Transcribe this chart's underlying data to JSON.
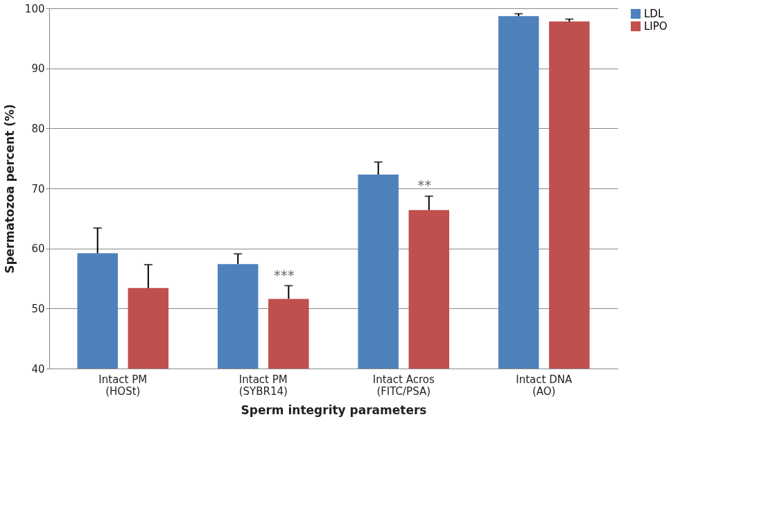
{
  "chart_data": {
    "type": "bar",
    "xlabel": "Sperm integrity parameters",
    "ylabel": "Spermatozoa percent (%)",
    "categories": [
      "Intact PM\n(HOSt)",
      "Intact PM\n(SYBR14)",
      "Intact Acros\n(FITC/PSA)",
      "Intact DNA\n(AO)"
    ],
    "series": [
      {
        "name": "LDL",
        "color": "#4f81bd",
        "values": [
          59.2,
          57.4,
          72.3,
          98.7
        ],
        "errors": [
          4.2,
          1.7,
          2.1,
          0.4
        ]
      },
      {
        "name": "LIPO",
        "color": "#c0504d",
        "values": [
          53.4,
          51.6,
          66.4,
          97.8
        ],
        "errors": [
          3.9,
          2.2,
          2.3,
          0.4
        ]
      }
    ],
    "ylim": [
      40,
      100
    ],
    "yticks": [
      40,
      50,
      60,
      70,
      80,
      90,
      100
    ],
    "grid": "y",
    "legend": "right",
    "annotations": [
      "***",
      "**"
    ]
  }
}
